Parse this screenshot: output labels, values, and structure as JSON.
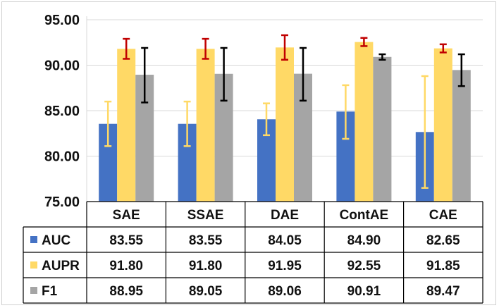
{
  "chart_data": {
    "type": "bar",
    "categories": [
      "SAE",
      "SSAE",
      "DAE",
      "ContAE",
      "CAE"
    ],
    "ylim": [
      75,
      95
    ],
    "yticks": [
      "75.00",
      "80.00",
      "85.00",
      "90.00",
      "95.00"
    ],
    "grid": true,
    "legend": "data-table",
    "series": [
      {
        "name": "AUC",
        "color": "#4472C4",
        "error_color": "#FFD966",
        "values": [
          83.55,
          83.55,
          84.05,
          84.9,
          82.65
        ],
        "labels": [
          "83.55",
          "83.55",
          "84.05",
          "84.90",
          "82.65"
        ],
        "err_low": [
          81.1,
          81.1,
          82.3,
          81.9,
          76.5
        ],
        "err_high": [
          86.0,
          86.0,
          85.8,
          87.8,
          88.8
        ]
      },
      {
        "name": "AUPR",
        "color": "#FFD966",
        "error_color": "#C00000",
        "values": [
          91.8,
          91.8,
          91.95,
          92.55,
          91.85
        ],
        "labels": [
          "91.80",
          "91.80",
          "91.95",
          "92.55",
          "91.85"
        ],
        "err_low": [
          90.7,
          90.7,
          90.6,
          92.1,
          91.4
        ],
        "err_high": [
          92.9,
          92.9,
          93.3,
          93.0,
          92.3
        ]
      },
      {
        "name": "F1",
        "color": "#A5A5A5",
        "error_color": "#000000",
        "values": [
          88.95,
          89.05,
          89.06,
          90.91,
          89.47
        ],
        "labels": [
          "88.95",
          "89.05",
          "89.06",
          "90.91",
          "89.47"
        ],
        "err_low": [
          85.9,
          86.1,
          86.1,
          90.6,
          87.7
        ],
        "err_high": [
          91.9,
          91.9,
          91.9,
          91.2,
          91.2
        ]
      }
    ]
  }
}
